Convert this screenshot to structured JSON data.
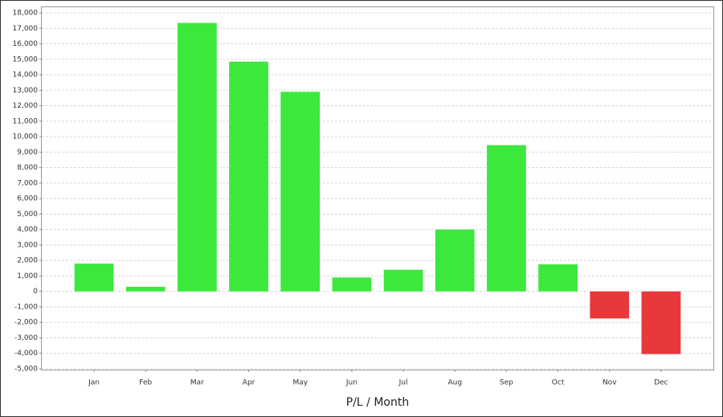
{
  "chart_data": {
    "type": "bar",
    "xlabel": "P/L / Month",
    "categories": [
      "Jan",
      "Feb",
      "Mar",
      "Apr",
      "May",
      "Jun",
      "Jul",
      "Aug",
      "Sep",
      "Oct",
      "Nov",
      "Dec"
    ],
    "values": [
      1800,
      300,
      17350,
      14850,
      12900,
      900,
      1400,
      4000,
      9450,
      1750,
      -1750,
      -4050
    ],
    "positive_color": "#3de83d",
    "negative_color": "#e8383c",
    "ylim": [
      -5000,
      18000
    ],
    "yticks": [
      {
        "value": -5000,
        "label": "-5,000"
      },
      {
        "value": -4000,
        "label": "-4,000"
      },
      {
        "value": -3000,
        "label": "-3,000"
      },
      {
        "value": -2000,
        "label": "-2,000"
      },
      {
        "value": -1000,
        "label": "-1,000"
      },
      0,
      {
        "value": 1000,
        "label": "1,000"
      },
      {
        "value": 2000,
        "label": "2,000"
      },
      {
        "value": 3000,
        "label": "3,000"
      },
      {
        "value": 4000,
        "label": "4,000"
      },
      {
        "value": 5000,
        "label": "5,000"
      },
      {
        "value": 6000,
        "label": "6,000"
      },
      {
        "value": 7000,
        "label": "7,000"
      },
      {
        "value": 8000,
        "label": "8,000"
      },
      {
        "value": 9000,
        "label": "9,000"
      },
      {
        "value": 10000,
        "label": "10,000"
      },
      {
        "value": 11000,
        "label": "11,000"
      },
      {
        "value": 12000,
        "label": "12,000"
      },
      {
        "value": 13000,
        "label": "13,000"
      },
      {
        "value": 14000,
        "label": "14,000"
      },
      {
        "value": 15000,
        "label": "15,000"
      },
      {
        "value": 16000,
        "label": "16,000"
      },
      {
        "value": 17000,
        "label": "17,000"
      },
      {
        "value": 18000,
        "label": "18,000"
      }
    ],
    "grid": true
  }
}
